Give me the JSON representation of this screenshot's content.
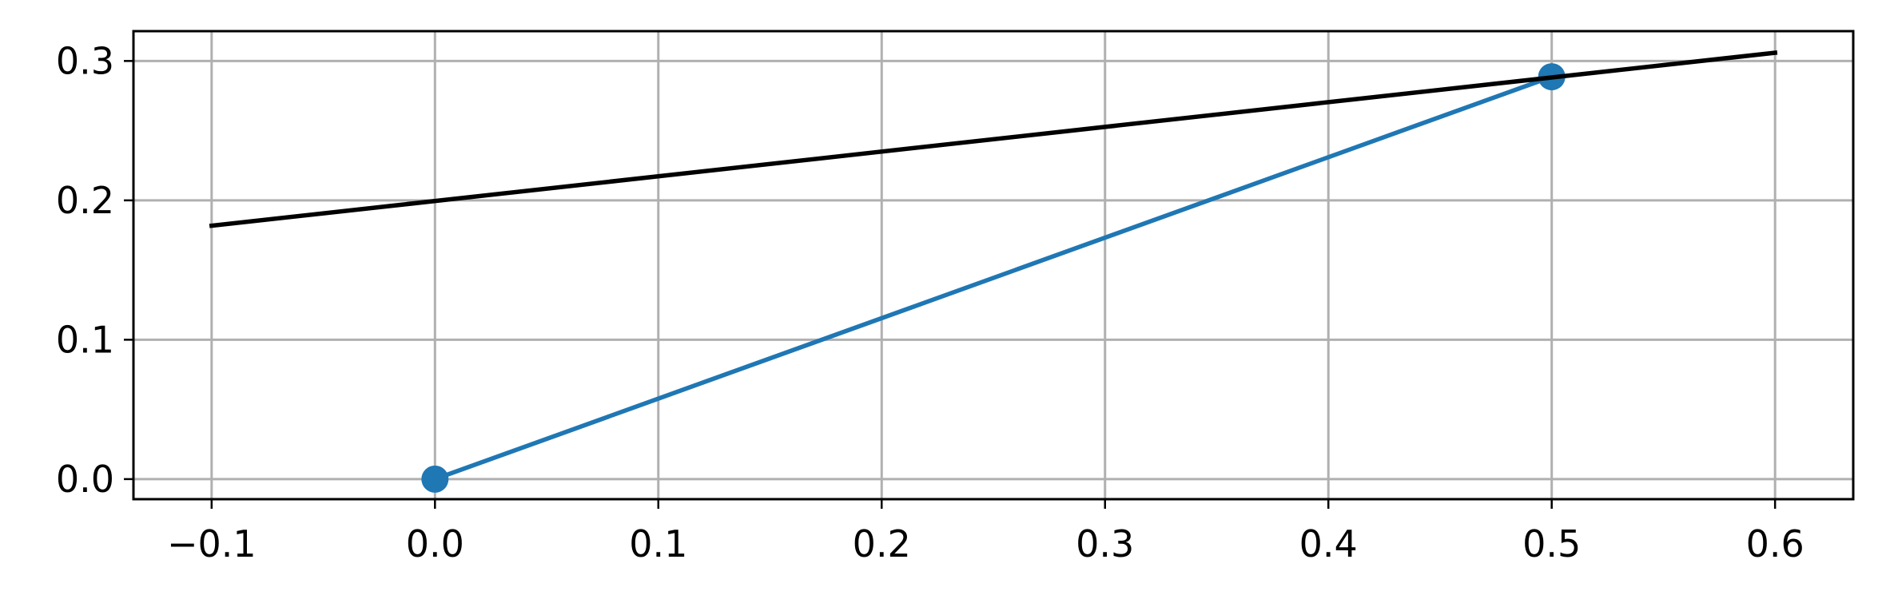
{
  "chart_data": {
    "type": "line",
    "title": "",
    "xlabel": "",
    "ylabel": "",
    "xlim": [
      -0.135,
      0.635
    ],
    "ylim": [
      -0.0144,
      0.3214
    ],
    "grid": true,
    "x_ticks": [
      -0.1,
      0.0,
      0.1,
      0.2,
      0.3,
      0.4,
      0.5,
      0.6
    ],
    "x_tick_labels": [
      "−0.1",
      "0.0",
      "0.1",
      "0.2",
      "0.3",
      "0.4",
      "0.5",
      "0.6"
    ],
    "y_ticks": [
      0.0,
      0.1,
      0.2,
      0.3
    ],
    "y_tick_labels": [
      "0.0",
      "0.1",
      "0.2",
      "0.3"
    ],
    "series": [
      {
        "x": [
          0.0,
          0.5
        ],
        "y": [
          0.0,
          0.2887
        ],
        "color": "#1f77b4",
        "markers": true
      },
      {
        "x": [
          -0.1,
          0.6
        ],
        "y": [
          0.1818,
          0.3059
        ],
        "color": "#000000",
        "markers": false
      }
    ]
  }
}
